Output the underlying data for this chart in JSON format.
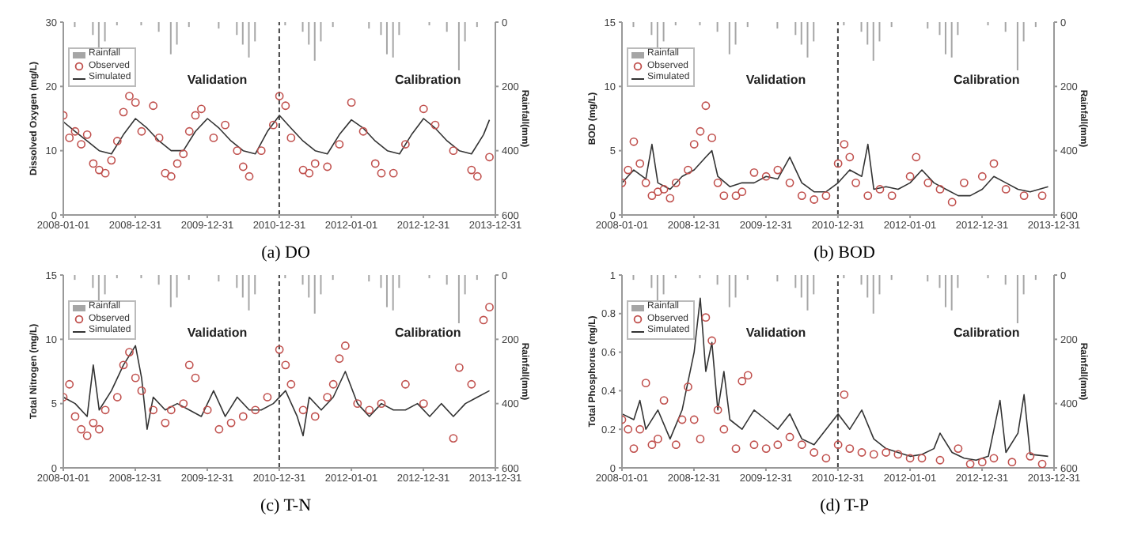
{
  "chart_data": [
    {
      "type": "line",
      "title": "(a)  DO",
      "ylabel": "Dissolved Oxygen (mg/L)",
      "y2label": "Rainfall(mm)",
      "annotations": [
        "Validation",
        "Calibration"
      ],
      "legend": "top left",
      "xlim": [
        "2008-01-01",
        "2013-12-31"
      ],
      "xticks": [
        "2008-01-01",
        "2008-12-31",
        "2009-12-31",
        "2010-12-31",
        "2012-01-01",
        "2012-12-31",
        "2013-12-31"
      ],
      "ylim": [
        0,
        30
      ],
      "yticks": [
        0,
        10,
        20,
        30
      ],
      "y2lim": [
        600,
        0
      ],
      "y2ticks": [
        0,
        200,
        400,
        600
      ],
      "ref_lines": [
        {
          "axis": "x",
          "value": "2010-12-31",
          "line_style": "dashed",
          "color": "#404040"
        }
      ],
      "series": [
        {
          "name": "Rainfall",
          "type": "bar",
          "axis": "y2",
          "color": "#a6a6a6",
          "x": [
            "2008-03",
            "2008-06",
            "2008-07",
            "2008-08",
            "2008-10",
            "2009-02",
            "2009-05",
            "2009-07",
            "2009-08",
            "2009-10",
            "2010-03",
            "2010-06",
            "2010-07",
            "2010-08",
            "2010-09",
            "2011-02",
            "2011-05",
            "2011-06",
            "2011-07",
            "2011-08",
            "2011-10",
            "2012-04",
            "2012-06",
            "2012-07",
            "2012-08",
            "2012-09",
            "2013-02",
            "2013-05",
            "2013-07",
            "2013-08",
            "2013-10"
          ],
          "values": [
            15,
            40,
            80,
            60,
            10,
            10,
            30,
            100,
            70,
            15,
            20,
            40,
            70,
            110,
            60,
            10,
            30,
            70,
            120,
            60,
            15,
            20,
            40,
            100,
            110,
            40,
            10,
            30,
            150,
            60,
            15
          ]
        },
        {
          "name": "Observed",
          "type": "scatter",
          "marker": "circle",
          "color": "#c0504d",
          "x": [
            "2008-01",
            "2008-02",
            "2008-03",
            "2008-04",
            "2008-05",
            "2008-06",
            "2008-07",
            "2008-08",
            "2008-09",
            "2008-10",
            "2008-11",
            "2008-12",
            "2009-01",
            "2009-02",
            "2009-04",
            "2009-05",
            "2009-06",
            "2009-07",
            "2009-08",
            "2009-09",
            "2009-10",
            "2009-11",
            "2009-12",
            "2010-02",
            "2010-04",
            "2010-06",
            "2010-07",
            "2010-08",
            "2010-10",
            "2010-12",
            "2011-01",
            "2011-02",
            "2011-03",
            "2011-05",
            "2011-06",
            "2011-07",
            "2011-09",
            "2011-11",
            "2012-01",
            "2012-03",
            "2012-05",
            "2012-06",
            "2012-08",
            "2012-10",
            "2013-01",
            "2013-03",
            "2013-06",
            "2013-09",
            "2013-10",
            "2013-12"
          ],
          "values": [
            15.5,
            12,
            13,
            11,
            12.5,
            8,
            7,
            6.5,
            8.5,
            11.5,
            16,
            18.5,
            17.5,
            13,
            17,
            12,
            6.5,
            6,
            8,
            9.5,
            13,
            15.5,
            16.5,
            12,
            14,
            10,
            7.5,
            6,
            10,
            14,
            18.5,
            17,
            12,
            7,
            6.5,
            8,
            7.5,
            11,
            17.5,
            13,
            8,
            6.5,
            6.5,
            11,
            16.5,
            14,
            10,
            7,
            6,
            9
          ]
        },
        {
          "name": "Simulated",
          "marker": "none",
          "color": "#333333",
          "x": [
            "2008-01",
            "2008-03",
            "2008-05",
            "2008-07",
            "2008-09",
            "2008-11",
            "2009-01",
            "2009-03",
            "2009-05",
            "2009-07",
            "2009-09",
            "2009-11",
            "2010-01",
            "2010-03",
            "2010-05",
            "2010-07",
            "2010-09",
            "2010-11",
            "2011-01",
            "2011-03",
            "2011-05",
            "2011-07",
            "2011-09",
            "2011-11",
            "2012-01",
            "2012-03",
            "2012-05",
            "2012-07",
            "2012-09",
            "2012-11",
            "2013-01",
            "2013-03",
            "2013-05",
            "2013-07",
            "2013-09",
            "2013-11",
            "2013-12"
          ],
          "values": [
            14.5,
            13,
            11.5,
            10,
            9.5,
            12.5,
            15,
            13.5,
            11.5,
            10,
            10,
            13,
            15,
            13.5,
            11.5,
            10,
            9.5,
            13,
            15.5,
            13.5,
            11.5,
            10,
            9.5,
            12.5,
            14.8,
            13.5,
            11.5,
            10,
            9.5,
            12.5,
            15,
            13.5,
            11.5,
            10,
            9.5,
            12.5,
            14.8
          ]
        }
      ]
    },
    {
      "type": "line",
      "title": "(b)  BOD",
      "ylabel": "BOD (mg/L)",
      "y2label": "Rainfall(mm)",
      "annotations": [
        "Validation",
        "Calibration"
      ],
      "legend": "top left",
      "xlim": [
        "2008-01-01",
        "2013-12-31"
      ],
      "xticks": [
        "2008-01-01",
        "2008-12-31",
        "2009-12-31",
        "2010-12-31",
        "2012-01-01",
        "2012-12-31",
        "2013-12-31"
      ],
      "ylim": [
        0,
        15
      ],
      "yticks": [
        0,
        5,
        10,
        15
      ],
      "y2lim": [
        600,
        0
      ],
      "y2ticks": [
        0,
        200,
        400,
        600
      ],
      "ref_lines": [
        {
          "axis": "x",
          "value": "2010-12-31",
          "line_style": "dashed",
          "color": "#404040"
        }
      ],
      "series": [
        {
          "name": "Rainfall",
          "type": "bar",
          "axis": "y2",
          "color": "#a6a6a6",
          "x": [
            "2008-03",
            "2008-06",
            "2008-07",
            "2008-08",
            "2008-10",
            "2009-02",
            "2009-05",
            "2009-07",
            "2009-08",
            "2009-10",
            "2010-03",
            "2010-06",
            "2010-07",
            "2010-08",
            "2010-09",
            "2011-02",
            "2011-05",
            "2011-06",
            "2011-07",
            "2011-08",
            "2011-10",
            "2012-04",
            "2012-06",
            "2012-07",
            "2012-08",
            "2012-09",
            "2013-02",
            "2013-05",
            "2013-07",
            "2013-08",
            "2013-10"
          ],
          "values": [
            15,
            40,
            80,
            60,
            10,
            10,
            30,
            100,
            70,
            15,
            20,
            40,
            70,
            110,
            60,
            10,
            30,
            70,
            120,
            60,
            15,
            20,
            40,
            100,
            110,
            40,
            10,
            30,
            150,
            60,
            15
          ]
        },
        {
          "name": "Observed",
          "type": "scatter",
          "marker": "circle",
          "color": "#c0504d",
          "x": [
            "2008-01",
            "2008-02",
            "2008-03",
            "2008-04",
            "2008-05",
            "2008-06",
            "2008-07",
            "2008-08",
            "2008-09",
            "2008-10",
            "2008-12",
            "2009-01",
            "2009-02",
            "2009-03",
            "2009-04",
            "2009-05",
            "2009-06",
            "2009-08",
            "2009-09",
            "2009-11",
            "2010-01",
            "2010-03",
            "2010-05",
            "2010-07",
            "2010-09",
            "2010-11",
            "2011-01",
            "2011-02",
            "2011-03",
            "2011-04",
            "2011-06",
            "2011-08",
            "2011-10",
            "2012-01",
            "2012-02",
            "2012-04",
            "2012-06",
            "2012-08",
            "2012-10",
            "2013-01",
            "2013-03",
            "2013-05",
            "2013-08",
            "2013-11"
          ],
          "values": [
            2.5,
            3.5,
            5.7,
            4,
            2.5,
            1.5,
            1.8,
            2,
            1.3,
            2.5,
            3.5,
            5.5,
            6.5,
            8.5,
            6,
            2.5,
            1.5,
            1.5,
            1.8,
            3.3,
            3,
            3.5,
            2.5,
            1.5,
            1.2,
            1.5,
            4,
            5.5,
            4.5,
            2.5,
            1.5,
            2,
            1.5,
            3,
            4.5,
            2.5,
            2,
            1,
            2.5,
            3,
            4,
            2,
            1.5,
            1.5
          ]
        },
        {
          "name": "Simulated",
          "marker": "none",
          "color": "#333333",
          "x": [
            "2008-01",
            "2008-03",
            "2008-05",
            "2008-06",
            "2008-07",
            "2008-09",
            "2008-11",
            "2009-01",
            "2009-03",
            "2009-04",
            "2009-05",
            "2009-07",
            "2009-09",
            "2009-11",
            "2010-01",
            "2010-03",
            "2010-05",
            "2010-07",
            "2010-09",
            "2010-11",
            "2011-01",
            "2011-03",
            "2011-05",
            "2011-06",
            "2011-07",
            "2011-09",
            "2011-11",
            "2012-01",
            "2012-03",
            "2012-05",
            "2012-07",
            "2012-09",
            "2012-11",
            "2013-01",
            "2013-03",
            "2013-05",
            "2013-07",
            "2013-09",
            "2013-12"
          ],
          "values": [
            2.5,
            3.5,
            2.8,
            5.5,
            2.5,
            2,
            3,
            3.5,
            4.5,
            5,
            3,
            2.2,
            2.5,
            2.5,
            3,
            2.8,
            4.5,
            2.5,
            1.8,
            1.8,
            2.5,
            3.5,
            3,
            5.5,
            2,
            2.2,
            2,
            2.5,
            3.5,
            2.5,
            2,
            1.5,
            1.5,
            2,
            3,
            2.5,
            2,
            1.8,
            2.2
          ]
        }
      ]
    },
    {
      "type": "line",
      "title": "(c)  T-N",
      "ylabel": "Total Nitrogen (mg/L)",
      "y2label": "Rainfall(mm)",
      "annotations": [
        "Validation",
        "Calibration"
      ],
      "legend": "top left",
      "xlim": [
        "2008-01-01",
        "2013-12-31"
      ],
      "xticks": [
        "2008-01-01",
        "2008-12-31",
        "2009-12-31",
        "2010-12-31",
        "2012-01-01",
        "2012-12-31",
        "2013-12-31"
      ],
      "ylim": [
        0,
        15
      ],
      "yticks": [
        0,
        5,
        10,
        15
      ],
      "y2lim": [
        600,
        0
      ],
      "y2ticks": [
        0,
        200,
        400,
        600
      ],
      "ref_lines": [
        {
          "axis": "x",
          "value": "2010-12-31",
          "line_style": "dashed",
          "color": "#404040"
        }
      ],
      "series": [
        {
          "name": "Rainfall",
          "type": "bar",
          "axis": "y2",
          "color": "#a6a6a6",
          "x": [
            "2008-03",
            "2008-06",
            "2008-07",
            "2008-08",
            "2008-10",
            "2009-02",
            "2009-05",
            "2009-07",
            "2009-08",
            "2009-10",
            "2010-03",
            "2010-06",
            "2010-07",
            "2010-08",
            "2010-09",
            "2011-02",
            "2011-05",
            "2011-06",
            "2011-07",
            "2011-08",
            "2011-10",
            "2012-04",
            "2012-06",
            "2012-07",
            "2012-08",
            "2012-09",
            "2013-02",
            "2013-05",
            "2013-07",
            "2013-08",
            "2013-10"
          ],
          "values": [
            15,
            40,
            80,
            60,
            10,
            10,
            30,
            100,
            70,
            15,
            20,
            40,
            70,
            110,
            60,
            10,
            30,
            70,
            120,
            60,
            15,
            20,
            40,
            100,
            110,
            40,
            10,
            30,
            150,
            60,
            15
          ]
        },
        {
          "name": "Observed",
          "type": "scatter",
          "marker": "circle",
          "color": "#c0504d",
          "x": [
            "2008-01",
            "2008-02",
            "2008-03",
            "2008-04",
            "2008-05",
            "2008-06",
            "2008-07",
            "2008-08",
            "2008-10",
            "2008-11",
            "2008-12",
            "2009-01",
            "2009-02",
            "2009-04",
            "2009-06",
            "2009-07",
            "2009-09",
            "2009-10",
            "2009-11",
            "2010-01",
            "2010-03",
            "2010-05",
            "2010-07",
            "2010-09",
            "2010-11",
            "2011-01",
            "2011-02",
            "2011-03",
            "2011-05",
            "2011-07",
            "2011-09",
            "2011-10",
            "2011-11",
            "2011-12",
            "2012-02",
            "2012-04",
            "2012-06",
            "2012-10",
            "2013-01",
            "2013-06",
            "2013-07",
            "2013-09",
            "2013-11",
            "2013-12"
          ],
          "values": [
            5.5,
            6.5,
            4,
            3,
            2.5,
            3.5,
            3,
            4.5,
            5.5,
            8,
            9,
            7,
            6,
            4.5,
            3.5,
            4.5,
            5,
            8,
            7,
            4.5,
            3,
            3.5,
            4,
            4.5,
            5.5,
            9.2,
            8,
            6.5,
            4.5,
            4,
            5.5,
            6.5,
            8.5,
            9.5,
            5,
            4.5,
            5,
            6.5,
            5,
            2.3,
            7.8,
            6.5,
            11.5,
            12.5
          ]
        },
        {
          "name": "Simulated",
          "marker": "none",
          "color": "#333333",
          "x": [
            "2008-01",
            "2008-03",
            "2008-05",
            "2008-06",
            "2008-07",
            "2008-09",
            "2008-11",
            "2009-01",
            "2009-02",
            "2009-03",
            "2009-04",
            "2009-06",
            "2009-08",
            "2009-10",
            "2009-12",
            "2010-02",
            "2010-04",
            "2010-06",
            "2010-08",
            "2010-10",
            "2010-12",
            "2011-02",
            "2011-04",
            "2011-05",
            "2011-06",
            "2011-08",
            "2011-10",
            "2011-12",
            "2012-02",
            "2012-04",
            "2012-06",
            "2012-08",
            "2012-10",
            "2012-12",
            "2013-02",
            "2013-04",
            "2013-06",
            "2013-08",
            "2013-10",
            "2013-12"
          ],
          "values": [
            5.5,
            5,
            4,
            8,
            4.5,
            6,
            8,
            9.5,
            7,
            3,
            5.5,
            4.5,
            5,
            4.5,
            4,
            6,
            4,
            5.5,
            4.5,
            4.5,
            5,
            6,
            4,
            2.5,
            5.5,
            4.5,
            5.5,
            7.5,
            5,
            4,
            5,
            4.5,
            4.5,
            5,
            4,
            5,
            4,
            5,
            5.5,
            6
          ]
        }
      ]
    },
    {
      "type": "line",
      "title": "(d)  T-P",
      "ylabel": "Total Phosphorus (mg/L)",
      "y2label": "Rainfall(mm)",
      "annotations": [
        "Validation",
        "Calibration"
      ],
      "legend": "top left",
      "xlim": [
        "2008-01-01",
        "2013-12-31"
      ],
      "xticks": [
        "2008-01-01",
        "2008-12-31",
        "2009-12-31",
        "2010-12-31",
        "2012-01-01",
        "2012-12-31",
        "2013-12-31"
      ],
      "ylim": [
        0,
        1
      ],
      "yticks": [
        0,
        0.2,
        0.4,
        0.6,
        0.8,
        1
      ],
      "y2lim": [
        600,
        0
      ],
      "y2ticks": [
        0,
        200,
        400,
        600
      ],
      "ref_lines": [
        {
          "axis": "x",
          "value": "2010-12-31",
          "line_style": "dashed",
          "color": "#404040"
        }
      ],
      "series": [
        {
          "name": "Rainfall",
          "type": "bar",
          "axis": "y2",
          "color": "#a6a6a6",
          "x": [
            "2008-03",
            "2008-06",
            "2008-07",
            "2008-08",
            "2008-10",
            "2009-02",
            "2009-05",
            "2009-07",
            "2009-08",
            "2009-10",
            "2010-03",
            "2010-06",
            "2010-07",
            "2010-08",
            "2010-09",
            "2011-02",
            "2011-05",
            "2011-06",
            "2011-07",
            "2011-08",
            "2011-10",
            "2012-04",
            "2012-06",
            "2012-07",
            "2012-08",
            "2012-09",
            "2013-02",
            "2013-05",
            "2013-07",
            "2013-08",
            "2013-10"
          ],
          "values": [
            15,
            40,
            80,
            60,
            10,
            10,
            30,
            100,
            70,
            15,
            20,
            40,
            70,
            110,
            60,
            10,
            30,
            70,
            120,
            60,
            15,
            20,
            40,
            100,
            110,
            40,
            10,
            30,
            150,
            60,
            15
          ]
        },
        {
          "name": "Observed",
          "type": "scatter",
          "marker": "circle",
          "color": "#c0504d",
          "x": [
            "2008-01",
            "2008-02",
            "2008-03",
            "2008-04",
            "2008-05",
            "2008-06",
            "2008-07",
            "2008-08",
            "2008-10",
            "2008-11",
            "2008-12",
            "2009-01",
            "2009-02",
            "2009-03",
            "2009-04",
            "2009-05",
            "2009-06",
            "2009-08",
            "2009-09",
            "2009-10",
            "2009-11",
            "2010-01",
            "2010-03",
            "2010-05",
            "2010-07",
            "2010-09",
            "2010-11",
            "2011-01",
            "2011-02",
            "2011-03",
            "2011-05",
            "2011-07",
            "2011-09",
            "2011-11",
            "2012-01",
            "2012-03",
            "2012-06",
            "2012-09",
            "2012-11",
            "2013-01",
            "2013-03",
            "2013-06",
            "2013-09",
            "2013-11"
          ],
          "values": [
            0.25,
            0.2,
            0.1,
            0.2,
            0.44,
            0.12,
            0.15,
            0.35,
            0.12,
            0.25,
            0.42,
            0.25,
            0.15,
            0.78,
            0.66,
            0.3,
            0.2,
            0.1,
            0.45,
            0.48,
            0.12,
            0.1,
            0.12,
            0.16,
            0.12,
            0.08,
            0.05,
            0.12,
            0.38,
            0.1,
            0.08,
            0.07,
            0.08,
            0.07,
            0.05,
            0.05,
            0.04,
            0.1,
            0.02,
            0.03,
            0.05,
            0.03,
            0.06,
            0.02
          ]
        },
        {
          "name": "Simulated",
          "marker": "none",
          "color": "#333333",
          "x": [
            "2008-01",
            "2008-03",
            "2008-04",
            "2008-05",
            "2008-07",
            "2008-09",
            "2008-11",
            "2009-01",
            "2009-02",
            "2009-03",
            "2009-04",
            "2009-05",
            "2009-06",
            "2009-07",
            "2009-09",
            "2009-11",
            "2010-01",
            "2010-03",
            "2010-05",
            "2010-07",
            "2010-09",
            "2010-11",
            "2011-01",
            "2011-03",
            "2011-05",
            "2011-07",
            "2011-09",
            "2011-11",
            "2012-01",
            "2012-03",
            "2012-05",
            "2012-06",
            "2012-08",
            "2012-10",
            "2012-12",
            "2013-02",
            "2013-04",
            "2013-05",
            "2013-07",
            "2013-08",
            "2013-09",
            "2013-12"
          ],
          "values": [
            0.28,
            0.25,
            0.35,
            0.2,
            0.3,
            0.15,
            0.3,
            0.6,
            0.88,
            0.5,
            0.65,
            0.3,
            0.5,
            0.25,
            0.2,
            0.3,
            0.25,
            0.2,
            0.28,
            0.15,
            0.12,
            0.2,
            0.28,
            0.2,
            0.3,
            0.15,
            0.1,
            0.08,
            0.06,
            0.07,
            0.1,
            0.18,
            0.08,
            0.05,
            0.04,
            0.06,
            0.35,
            0.08,
            0.18,
            0.38,
            0.07,
            0.06
          ]
        }
      ]
    }
  ]
}
